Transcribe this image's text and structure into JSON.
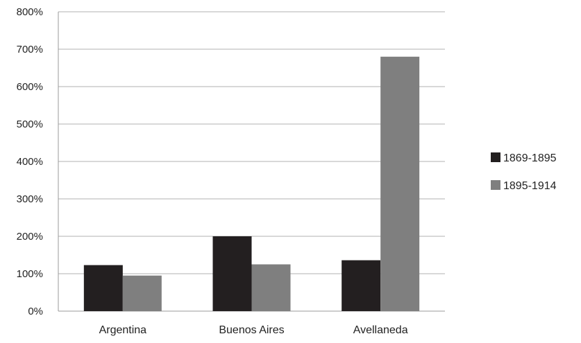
{
  "chart_data": {
    "type": "bar",
    "categories": [
      "Argentina",
      "Buenos Aires",
      "Avellaneda"
    ],
    "series": [
      {
        "name": "1869-1895",
        "values": [
          123,
          200,
          136
        ],
        "color": "#231f20"
      },
      {
        "name": "1895-1914",
        "values": [
          95,
          125,
          680
        ],
        "color": "#7f7f7f"
      }
    ],
    "y_ticks": [
      "0%",
      "100%",
      "200%",
      "300%",
      "400%",
      "500%",
      "600%",
      "700%",
      "800%"
    ],
    "ylim": [
      0,
      800
    ],
    "ytick_step": 100,
    "grid": true,
    "legend_position": "right"
  }
}
